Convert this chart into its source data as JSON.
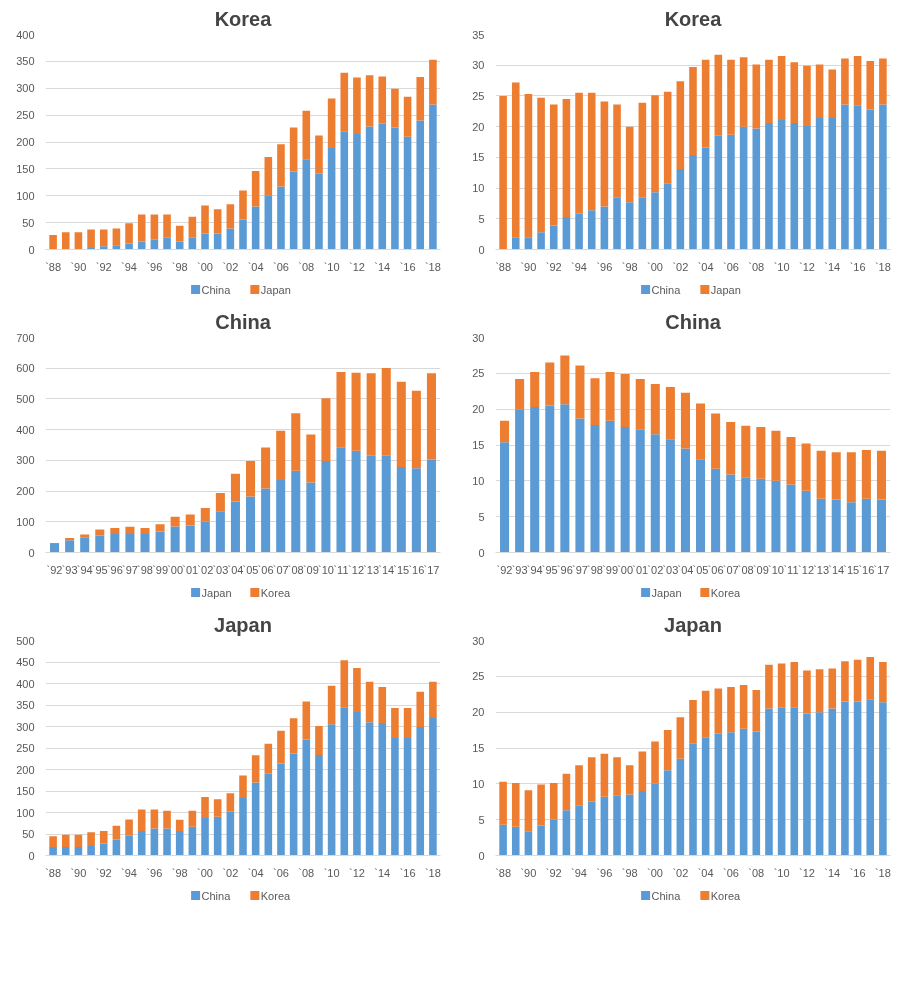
{
  "chart_data": [
    {
      "type": "bar",
      "title": "Korea",
      "stacked": true,
      "grid": "y",
      "legend": "bottom",
      "categories": [
        "`88",
        null,
        "`90",
        null,
        "`92",
        null,
        "`94",
        null,
        "`96",
        null,
        "`98",
        null,
        "`00",
        null,
        "`02",
        null,
        "`04",
        null,
        "`06",
        null,
        "`08",
        null,
        "`10",
        null,
        "`12",
        null,
        "`14",
        null,
        "`16",
        null,
        "`18"
      ],
      "ylim": [
        0,
        400
      ],
      "yticks": [
        0,
        50,
        100,
        150,
        200,
        250,
        300,
        350,
        400
      ],
      "series": [
        {
          "name": "China",
          "color": "#5b9bd5",
          "values": [
            0,
            0,
            0,
            3,
            6,
            8,
            11,
            15,
            18,
            22,
            15,
            22,
            30,
            30,
            39,
            56,
            80,
            101,
            117,
            145,
            168,
            141,
            189,
            220,
            215,
            229,
            234,
            227,
            210,
            240,
            270
          ]
        },
        {
          "name": "Japan",
          "color": "#ed7d31",
          "values": [
            27,
            32,
            32,
            34,
            31,
            31,
            38,
            50,
            47,
            43,
            29,
            39,
            52,
            45,
            45,
            54,
            66,
            71,
            79,
            82,
            90,
            71,
            92,
            109,
            105,
            95,
            88,
            72,
            74,
            81,
            83
          ]
        }
      ]
    },
    {
      "type": "bar",
      "title": "Korea",
      "stacked": true,
      "grid": "y",
      "legend": "bottom",
      "categories": [
        "`88",
        null,
        "`90",
        null,
        "`92",
        null,
        "`94",
        null,
        "`96",
        null,
        "`98",
        null,
        "`00",
        null,
        "`02",
        null,
        "`04",
        null,
        "`06",
        null,
        "`08",
        null,
        "`10",
        null,
        "`12",
        null,
        "`14",
        null,
        "`16",
        null,
        "`18"
      ],
      "ylim": [
        0,
        35
      ],
      "yticks": [
        0,
        5,
        10,
        15,
        20,
        25,
        30,
        35
      ],
      "series": [
        {
          "name": "China",
          "color": "#5b9bd5",
          "values": [
            0,
            2,
            2,
            2.8,
            3.9,
            5.3,
            5.8,
            6.4,
            7,
            8.5,
            7.7,
            8.5,
            9.3,
            10.8,
            13.1,
            15.4,
            16.6,
            18.5,
            18.7,
            20,
            19.7,
            20.6,
            21.1,
            20.6,
            20.1,
            21.4,
            21.4,
            23.6,
            23.5,
            22.8,
            23.6
          ]
        },
        {
          "name": "Japan",
          "color": "#ed7d31",
          "values": [
            25,
            25.2,
            23.3,
            21.9,
            19.7,
            19.2,
            19.7,
            19.1,
            17.1,
            15.1,
            12.3,
            15.4,
            15.8,
            14.9,
            14.3,
            14.3,
            14.3,
            13.2,
            12.2,
            11.3,
            10.4,
            10.3,
            10.4,
            9.9,
            9.8,
            8.7,
            7.9,
            7.5,
            8,
            7.9,
            7.5
          ]
        }
      ]
    },
    {
      "type": "bar",
      "title": "China",
      "stacked": true,
      "grid": "y",
      "legend": "bottom",
      "categories": [
        "`92",
        "`93",
        "`94",
        "`95",
        "`96",
        "`97",
        "`98",
        "`99",
        "`00",
        "`01",
        "`02",
        "`03",
        "`04",
        "`05",
        "`06",
        "`07",
        "`08",
        "`09",
        "`10",
        "`11",
        "`12",
        "`13",
        "`14",
        "`15",
        "`16",
        "`17"
      ],
      "ylim": [
        0,
        700
      ],
      "yticks": [
        0,
        100,
        200,
        300,
        400,
        500,
        600,
        700
      ],
      "series": [
        {
          "name": "Japan",
          "color": "#5b9bd5",
          "values": [
            28,
            40,
            48,
            55,
            60,
            60,
            60,
            68,
            85,
            88,
            101,
            134,
            166,
            182,
            208,
            236,
            266,
            228,
            298,
            343,
            331,
            315,
            315,
            278,
            274,
            303
          ]
        },
        {
          "name": "Korea",
          "color": "#ed7d31",
          "values": [
            3,
            7,
            11,
            20,
            20,
            24,
            20,
            24,
            31,
            36,
            44,
            60,
            90,
            116,
            134,
            160,
            187,
            156,
            204,
            245,
            254,
            269,
            286,
            278,
            253,
            281
          ]
        }
      ]
    },
    {
      "type": "bar",
      "title": "China",
      "stacked": true,
      "grid": "y",
      "legend": "bottom",
      "categories": [
        "`92",
        "`93",
        "`94",
        "`95",
        "`96",
        "`97",
        "`98",
        "`99",
        "`00",
        "`01",
        "`02",
        "`03",
        "`04",
        "`05",
        "`06",
        "`07",
        "`08",
        "`09",
        "`10",
        "`11",
        "`12",
        "`13",
        "`14",
        "`15",
        "`16",
        "`17"
      ],
      "ylim": [
        0,
        30
      ],
      "yticks": [
        0,
        5,
        10,
        15,
        20,
        25,
        30
      ],
      "series": [
        {
          "name": "Japan",
          "color": "#5b9bd5",
          "values": [
            15.4,
            20,
            20.3,
            20.5,
            20.7,
            18.7,
            17.8,
            18.4,
            17.5,
            17.2,
            16.5,
            15.8,
            14.5,
            13,
            11.7,
            10.9,
            10.5,
            10.3,
            10,
            9.5,
            8.6,
            7.5,
            7.4,
            7,
            7.5,
            7.4
          ]
        },
        {
          "name": "Korea",
          "color": "#ed7d31",
          "values": [
            3,
            4.2,
            4.9,
            6,
            6.8,
            7.4,
            6.5,
            6.8,
            7.4,
            7,
            7,
            7.3,
            7.8,
            7.8,
            7.7,
            7.3,
            7.2,
            7.2,
            7,
            6.6,
            6.6,
            6.7,
            6.6,
            7,
            6.8,
            6.8
          ]
        }
      ]
    },
    {
      "type": "bar",
      "title": "Japan",
      "stacked": true,
      "grid": "y",
      "legend": "bottom",
      "categories": [
        "`88",
        null,
        "`90",
        null,
        "`92",
        null,
        "`94",
        null,
        "`96",
        null,
        "`98",
        null,
        "`00",
        null,
        "`02",
        null,
        "`04",
        null,
        "`06",
        null,
        "`08",
        null,
        "`10",
        null,
        "`12",
        null,
        "`14",
        null,
        "`16",
        null,
        "`18"
      ],
      "ylim": [
        0,
        500
      ],
      "yticks": [
        0,
        50,
        100,
        150,
        200,
        250,
        300,
        350,
        400,
        450,
        500
      ],
      "series": [
        {
          "name": "China",
          "color": "#5b9bd5",
          "values": [
            20,
            20,
            20,
            22,
            28,
            37,
            46,
            57,
            63,
            63,
            57,
            67,
            87,
            90,
            102,
            134,
            170,
            190,
            214,
            237,
            270,
            234,
            305,
            345,
            334,
            310,
            308,
            273,
            273,
            299,
            320
          ]
        },
        {
          "name": "Korea",
          "color": "#ed7d31",
          "values": [
            25,
            28,
            28,
            32,
            29,
            32,
            38,
            50,
            44,
            41,
            26,
            37,
            49,
            41,
            43,
            52,
            63,
            70,
            76,
            82,
            88,
            67,
            90,
            109,
            102,
            94,
            84,
            70,
            70,
            82,
            84
          ]
        }
      ]
    },
    {
      "type": "bar",
      "title": "Japan",
      "stacked": true,
      "grid": "y",
      "legend": "bottom",
      "categories": [
        "`88",
        null,
        "`90",
        null,
        "`92",
        null,
        "`94",
        null,
        "`96",
        null,
        "`98",
        null,
        "`00",
        null,
        "`02",
        null,
        "`04",
        null,
        "`06",
        null,
        "`08",
        null,
        "`10",
        null,
        "`12",
        null,
        "`14",
        null,
        "`16",
        null,
        "`18"
      ],
      "ylim": [
        0,
        30
      ],
      "yticks": [
        0,
        5,
        10,
        15,
        20,
        25,
        30
      ],
      "series": [
        {
          "name": "China",
          "color": "#5b9bd5",
          "values": [
            4.3,
            4,
            3.4,
            4.2,
            5,
            6.3,
            7,
            7.5,
            8.2,
            8.4,
            8.5,
            9,
            10,
            11.9,
            13.5,
            15.6,
            16.5,
            17,
            17.2,
            17.7,
            17.3,
            20.5,
            20.7,
            20.7,
            19.8,
            20,
            20.5,
            21.5,
            21.5,
            21.8,
            21.4
          ]
        },
        {
          "name": "Korea",
          "color": "#ed7d31",
          "values": [
            6,
            6.1,
            5.7,
            5.7,
            5.1,
            5.1,
            5.6,
            6.2,
            6,
            5.3,
            4.1,
            5.5,
            5.9,
            5.6,
            5.8,
            6.1,
            6.5,
            6.3,
            6.3,
            6.1,
            5.8,
            6.1,
            6.1,
            6.3,
            6,
            6,
            5.6,
            5.6,
            5.8,
            5.9,
            5.6
          ]
        }
      ]
    }
  ]
}
